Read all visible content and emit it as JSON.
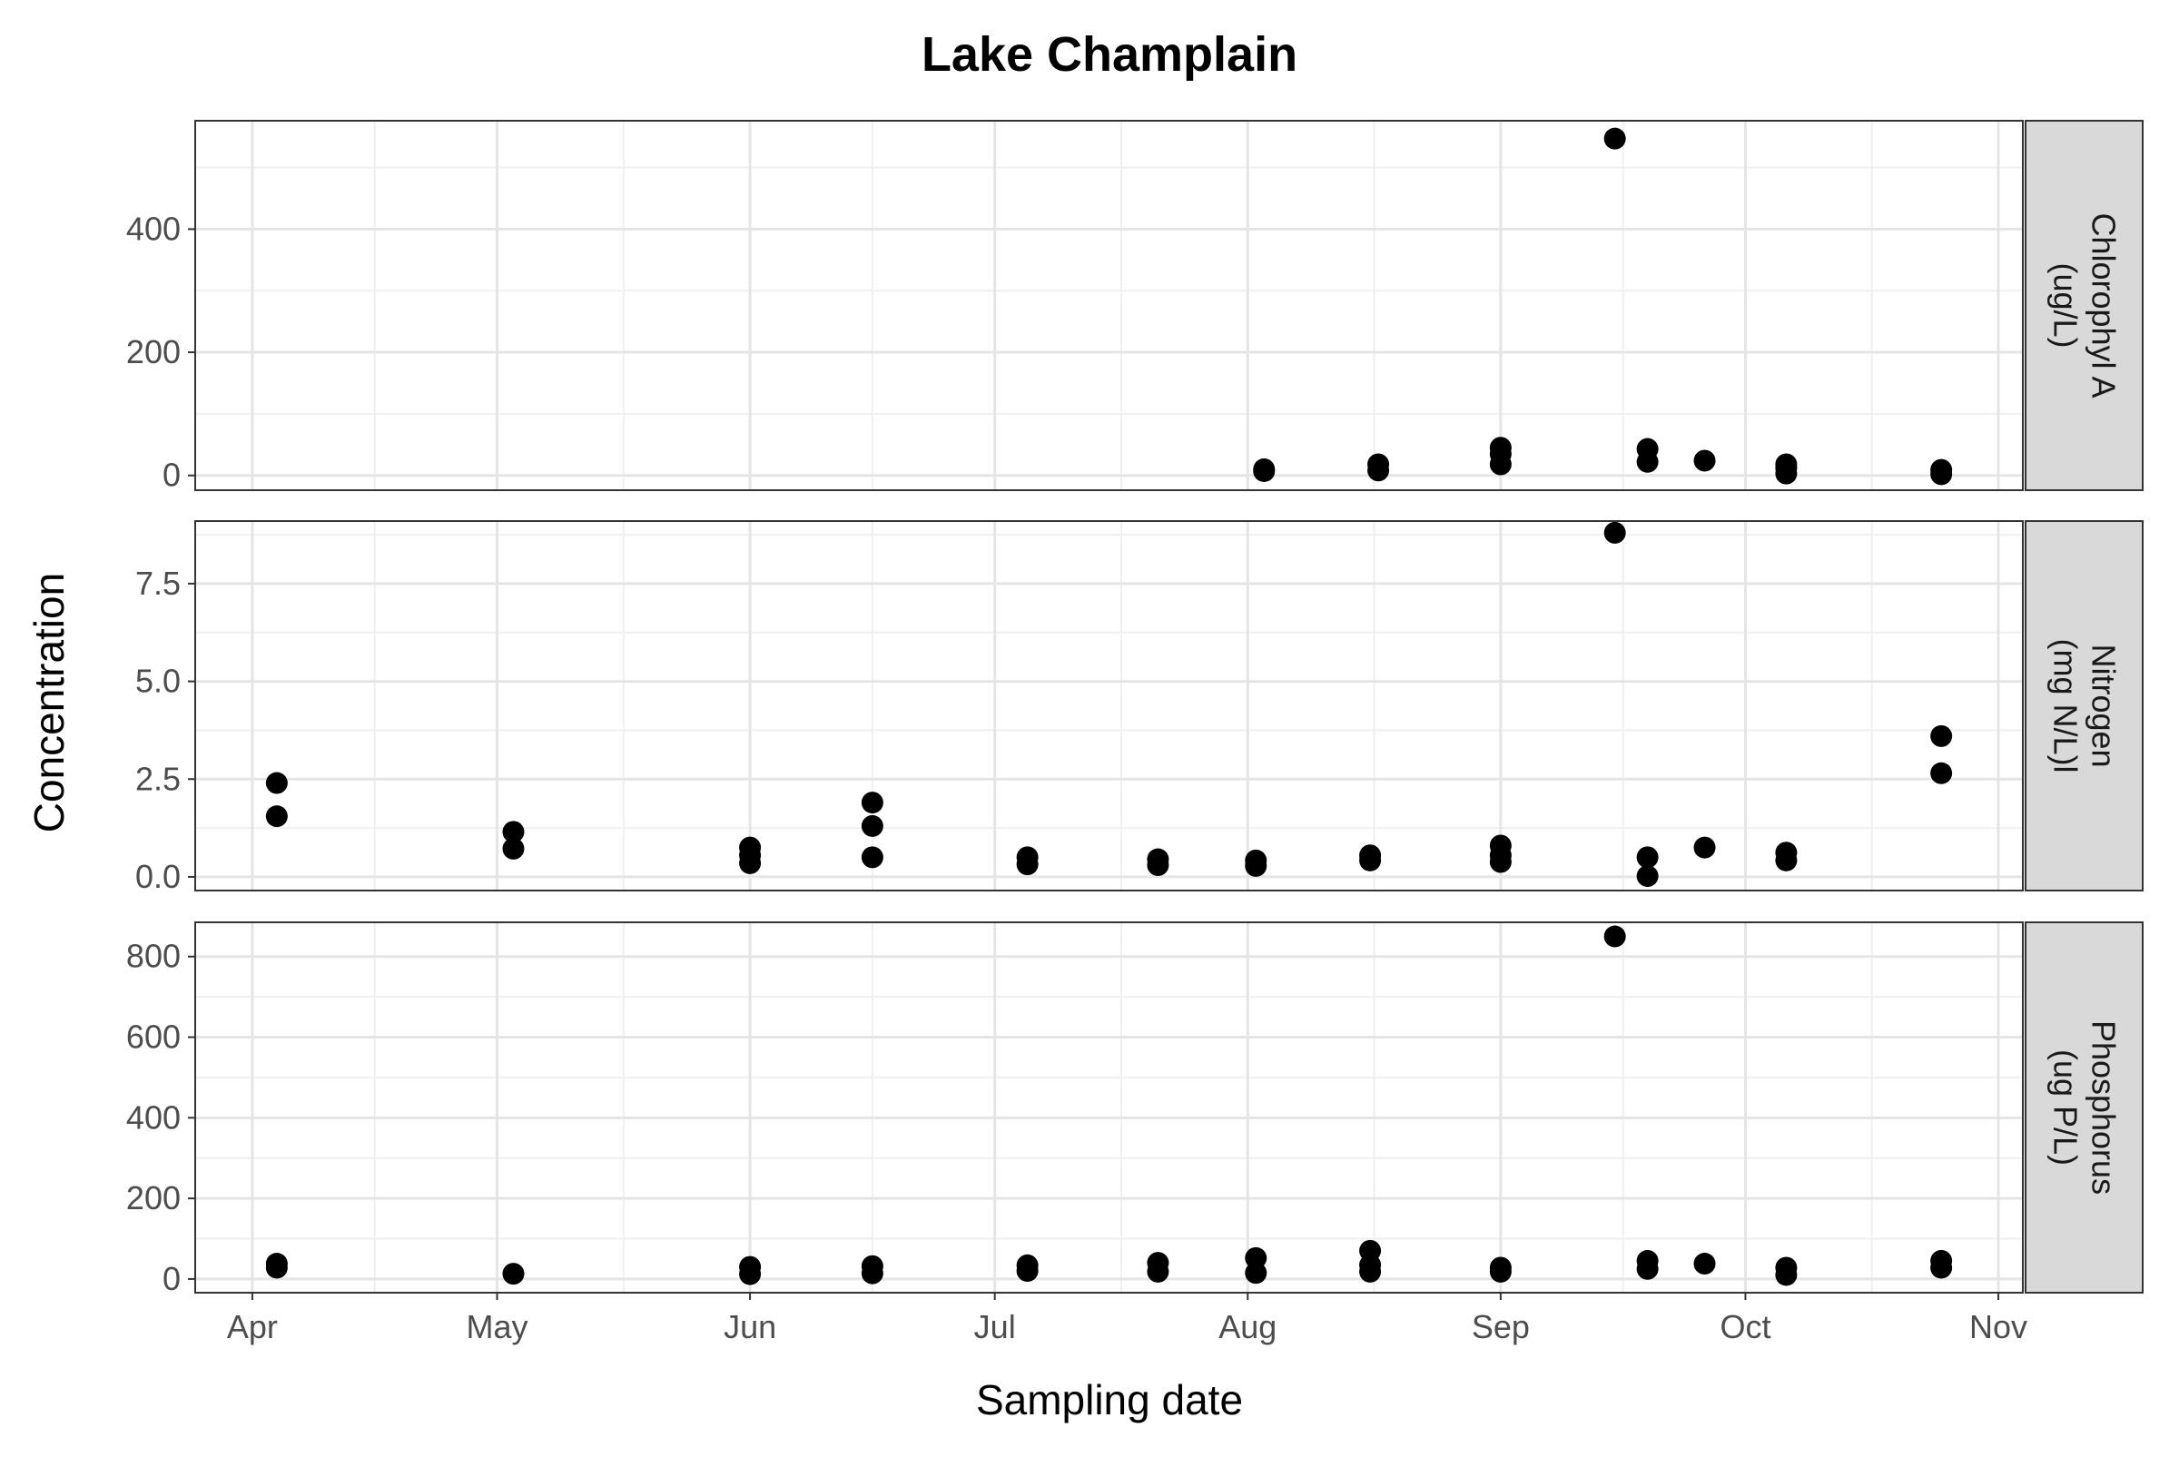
{
  "chart_data": {
    "type": "scatter",
    "title": "Lake Champlain",
    "xlabel": "Sampling date",
    "ylabel": "Concentration",
    "x_ticks": [
      "Apr",
      "May",
      "Jun",
      "Jul",
      "Aug",
      "Sep",
      "Oct",
      "Nov"
    ],
    "x_tick_dates": [
      "2019-04-01",
      "2019-05-01",
      "2019-06-01",
      "2019-07-01",
      "2019-08-01",
      "2019-09-01",
      "2019-10-01",
      "2019-11-01"
    ],
    "xlim": [
      "2019-03-25",
      "2019-11-04"
    ],
    "grid": true,
    "legend": "none",
    "point_color": "#000000",
    "strip_fill": "#d9d9d9",
    "panels": [
      {
        "strip_lines": [
          "Chlorophyl A",
          "(ug/L)"
        ],
        "ylim": [
          -24,
          576
        ],
        "y_ticks": [
          0,
          200,
          400
        ],
        "y_tick_labels": [
          "0",
          "200",
          "400"
        ],
        "points": [
          {
            "x": "2019-08-03",
            "y": 7
          },
          {
            "x": "2019-08-03",
            "y": 10
          },
          {
            "x": "2019-08-17",
            "y": 8
          },
          {
            "x": "2019-08-17",
            "y": 18
          },
          {
            "x": "2019-09-01",
            "y": 18
          },
          {
            "x": "2019-09-01",
            "y": 35
          },
          {
            "x": "2019-09-01",
            "y": 45
          },
          {
            "x": "2019-09-15",
            "y": 547
          },
          {
            "x": "2019-09-19",
            "y": 22
          },
          {
            "x": "2019-09-19",
            "y": 43
          },
          {
            "x": "2019-09-26",
            "y": 24
          },
          {
            "x": "2019-10-06",
            "y": 3
          },
          {
            "x": "2019-10-06",
            "y": 12
          },
          {
            "x": "2019-10-06",
            "y": 18
          },
          {
            "x": "2019-10-25",
            "y": 2
          },
          {
            "x": "2019-10-25",
            "y": 9
          }
        ]
      },
      {
        "strip_lines": [
          "Nitrogen",
          "(mg N/L)l"
        ],
        "ylim": [
          -0.35,
          9.1
        ],
        "y_ticks": [
          0,
          2.5,
          5.0,
          7.5
        ],
        "y_tick_labels": [
          "0.0",
          "2.5",
          "5.0",
          "7.5"
        ],
        "points": [
          {
            "x": "2019-04-04",
            "y": 2.4
          },
          {
            "x": "2019-04-04",
            "y": 1.55
          },
          {
            "x": "2019-05-03",
            "y": 1.15
          },
          {
            "x": "2019-05-03",
            "y": 0.72
          },
          {
            "x": "2019-06-01",
            "y": 0.75
          },
          {
            "x": "2019-06-01",
            "y": 0.55
          },
          {
            "x": "2019-06-01",
            "y": 0.35
          },
          {
            "x": "2019-06-16",
            "y": 1.9
          },
          {
            "x": "2019-06-16",
            "y": 1.3
          },
          {
            "x": "2019-06-16",
            "y": 0.5
          },
          {
            "x": "2019-07-05",
            "y": 0.5
          },
          {
            "x": "2019-07-05",
            "y": 0.32
          },
          {
            "x": "2019-07-21",
            "y": 0.45
          },
          {
            "x": "2019-07-21",
            "y": 0.3
          },
          {
            "x": "2019-08-02",
            "y": 0.42
          },
          {
            "x": "2019-08-02",
            "y": 0.28
          },
          {
            "x": "2019-08-16",
            "y": 0.55
          },
          {
            "x": "2019-08-16",
            "y": 0.42
          },
          {
            "x": "2019-09-01",
            "y": 0.8
          },
          {
            "x": "2019-09-01",
            "y": 0.55
          },
          {
            "x": "2019-09-01",
            "y": 0.38
          },
          {
            "x": "2019-09-15",
            "y": 8.8
          },
          {
            "x": "2019-09-19",
            "y": 0.5
          },
          {
            "x": "2019-09-19",
            "y": 0.02
          },
          {
            "x": "2019-09-26",
            "y": 0.75
          },
          {
            "x": "2019-10-06",
            "y": 0.62
          },
          {
            "x": "2019-10-06",
            "y": 0.42
          },
          {
            "x": "2019-10-25",
            "y": 3.6
          },
          {
            "x": "2019-10-25",
            "y": 2.65
          }
        ]
      },
      {
        "strip_lines": [
          "Phosphorus",
          "(ug P/L)"
        ],
        "ylim": [
          -34,
          885
        ],
        "y_ticks": [
          0,
          200,
          400,
          600,
          800
        ],
        "y_tick_labels": [
          "0",
          "200",
          "400",
          "600",
          "800"
        ],
        "points": [
          {
            "x": "2019-04-04",
            "y": 38
          },
          {
            "x": "2019-04-04",
            "y": 28
          },
          {
            "x": "2019-05-03",
            "y": 13
          },
          {
            "x": "2019-06-01",
            "y": 30
          },
          {
            "x": "2019-06-01",
            "y": 12
          },
          {
            "x": "2019-06-16",
            "y": 32
          },
          {
            "x": "2019-06-16",
            "y": 14
          },
          {
            "x": "2019-07-05",
            "y": 34
          },
          {
            "x": "2019-07-05",
            "y": 20
          },
          {
            "x": "2019-07-21",
            "y": 40
          },
          {
            "x": "2019-07-21",
            "y": 18
          },
          {
            "x": "2019-08-02",
            "y": 52
          },
          {
            "x": "2019-08-02",
            "y": 15
          },
          {
            "x": "2019-08-16",
            "y": 70
          },
          {
            "x": "2019-08-16",
            "y": 35
          },
          {
            "x": "2019-08-16",
            "y": 18
          },
          {
            "x": "2019-09-01",
            "y": 28
          },
          {
            "x": "2019-09-01",
            "y": 18
          },
          {
            "x": "2019-09-15",
            "y": 850
          },
          {
            "x": "2019-09-19",
            "y": 45
          },
          {
            "x": "2019-09-19",
            "y": 25
          },
          {
            "x": "2019-09-26",
            "y": 38
          },
          {
            "x": "2019-10-06",
            "y": 28
          },
          {
            "x": "2019-10-06",
            "y": 10
          },
          {
            "x": "2019-10-25",
            "y": 45
          },
          {
            "x": "2019-10-25",
            "y": 28
          }
        ]
      }
    ]
  }
}
